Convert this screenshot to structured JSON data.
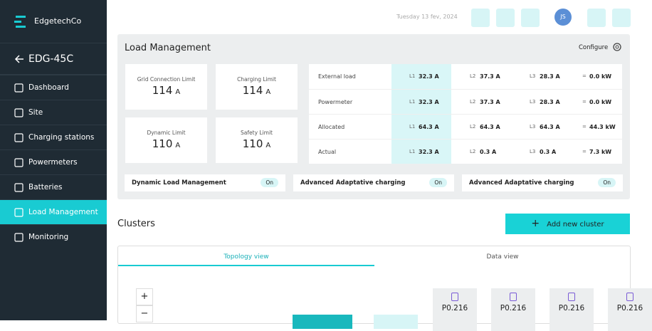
{
  "sidebar": {
    "brand": "EdgetechCo",
    "back_title": "EDG-45C",
    "nav": [
      "Dashboard",
      "Site",
      "Charging stations",
      "Powermeters",
      "Batteries",
      "Load Management",
      "Monitoring"
    ]
  },
  "header": {
    "date": "Tuesday 13 fev, 2024",
    "avatar": "JS"
  },
  "load_management": {
    "title": "Load Management",
    "configure": "Configure",
    "limits": [
      {
        "label": "Grid Connection Limit",
        "value": "114",
        "unit": "A"
      },
      {
        "label": "Charging Limit",
        "value": "114",
        "unit": "A"
      },
      {
        "label": "Dynamic Limit",
        "value": "110",
        "unit": "A"
      },
      {
        "label": "Safety Limit",
        "value": "110",
        "unit": "A"
      }
    ],
    "equals": "=",
    "table": [
      {
        "name": "External load",
        "phases": [
          {
            "phase": "L1",
            "value": "32.3 A"
          },
          {
            "phase": "L2",
            "value": "37.3 A"
          },
          {
            "phase": "L3",
            "value": "28.3 A"
          }
        ],
        "total": "0.0 kW"
      },
      {
        "name": "Powermeter",
        "phases": [
          {
            "phase": "L1",
            "value": "32.3 A"
          },
          {
            "phase": "L2",
            "value": "37.3 A"
          },
          {
            "phase": "L3",
            "value": "28.3 A"
          }
        ],
        "total": "0.0 kW"
      },
      {
        "name": "Allocated",
        "phases": [
          {
            "phase": "L1",
            "value": "64.3 A"
          },
          {
            "phase": "L2",
            "value": "64.3 A"
          },
          {
            "phase": "L3",
            "value": "64.3 A"
          }
        ],
        "total": "44.3 kW"
      },
      {
        "name": "Actual",
        "phases": [
          {
            "phase": "L1",
            "value": "32.3 A"
          },
          {
            "phase": "L2",
            "value": "0.3 A"
          },
          {
            "phase": "L3",
            "value": "0.3 A"
          }
        ],
        "total": "7.3 kW"
      }
    ],
    "toggles": [
      {
        "label": "Dynamic Load Management",
        "state": "On"
      },
      {
        "label": "Advanced Adaptative charging",
        "state": "On"
      },
      {
        "label": "Advanced Adaptative charging",
        "state": "On"
      }
    ]
  },
  "clusters": {
    "title": "Clusters",
    "add_button": "Add new cluster",
    "tabs": [
      "Topology view",
      "Data view"
    ],
    "zoom_in": "+",
    "zoom_out": "−",
    "nodes": [
      "P0.216",
      "P0.216",
      "P0.216",
      "P0.216"
    ]
  }
}
